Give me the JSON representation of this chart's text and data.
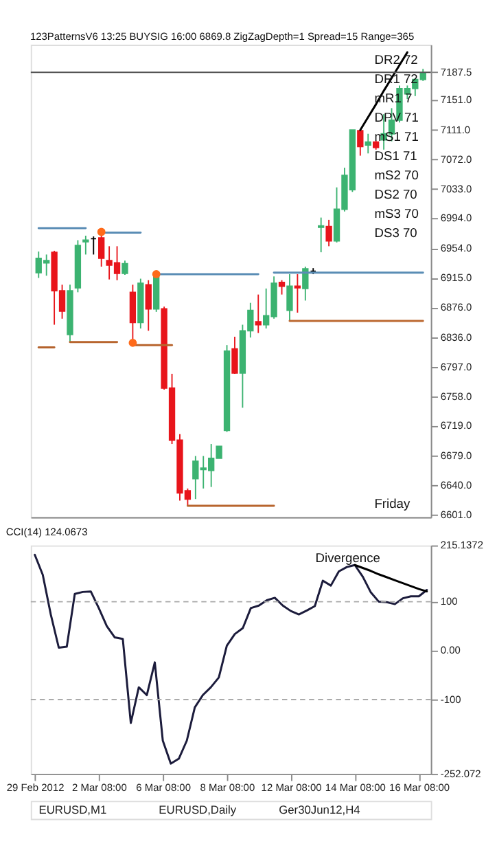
{
  "chart_data": [
    {
      "type": "candlestick",
      "title": "123PatternsV6  13:25  BUYSIG  16:00  6869.8  ZigZagDepth=1  Spread=15  Range=365",
      "tick_labels": "y",
      "grid": false,
      "categories": [
        null,
        null,
        null,
        null,
        null,
        null,
        null,
        null,
        null,
        null,
        null,
        null,
        null,
        null,
        null,
        null,
        null,
        null,
        null,
        null,
        null,
        null,
        null,
        null,
        null,
        null,
        null,
        null,
        null,
        null,
        null,
        null,
        null,
        null,
        null,
        null,
        null,
        null,
        null,
        null,
        null,
        null,
        null,
        null,
        null,
        null,
        null,
        null,
        null,
        null
      ],
      "ylim": [
        6598,
        7224
      ],
      "yticks": [
        {
          "value": 6601,
          "label": "6601.0"
        },
        {
          "value": 6640,
          "label": "6640.0"
        },
        {
          "value": 6679,
          "label": "6679.0"
        },
        {
          "value": 6719,
          "label": "6719.0"
        },
        {
          "value": 6758,
          "label": "6758.0"
        },
        {
          "value": 6797,
          "label": "6797.0"
        },
        {
          "value": 6836,
          "label": "6836.0"
        },
        {
          "value": 6876,
          "label": "6876.0"
        },
        {
          "value": 6915,
          "label": "6915.0"
        },
        {
          "value": 6954,
          "label": "6954.0"
        },
        {
          "value": 6994,
          "label": "6994.0"
        },
        {
          "value": 7033,
          "label": "7033.0"
        },
        {
          "value": 7072,
          "label": "7072.0"
        },
        {
          "value": 7111,
          "label": "7111.0"
        },
        {
          "value": 7151,
          "label": "7151.0"
        },
        {
          "value": 7187.5,
          "label": "7187.5"
        }
      ],
      "ohlc": [
        [
          6922,
          6950,
          6915,
          6941
        ],
        [
          6935,
          6946,
          6918,
          6938
        ],
        [
          6949,
          6951,
          6853,
          6898
        ],
        [
          6898,
          6906,
          6861,
          6871
        ],
        [
          6840,
          6906,
          6829,
          6898
        ],
        [
          6902,
          6965,
          6896,
          6958
        ],
        [
          6963,
          6971,
          6946,
          6965
        ],
        [
          6967,
          6970,
          6946,
          6967
        ],
        [
          6968,
          6973,
          6930,
          6941
        ],
        [
          6938,
          6957,
          6913,
          6932
        ],
        [
          6935,
          6957,
          6912,
          6921
        ],
        [
          6921,
          6938,
          6919,
          6934
        ],
        [
          6896,
          6906,
          6829,
          6856
        ],
        [
          6856,
          6914,
          6848,
          6908
        ],
        [
          6906,
          6912,
          6845,
          6874
        ],
        [
          6874,
          6922,
          6870,
          6920
        ],
        [
          6874,
          6877,
          6767,
          6769
        ],
        [
          6769,
          6788,
          6695,
          6700
        ],
        [
          6700,
          6708,
          6620,
          6630
        ],
        [
          6633,
          6636,
          6614,
          6622
        ],
        [
          6649,
          6679,
          6622,
          6672
        ],
        [
          6661,
          6679,
          6636,
          6663
        ],
        [
          6660,
          6695,
          6638,
          6676
        ],
        [
          6676,
          6692,
          6676,
          6692
        ],
        [
          6713,
          6826,
          6711,
          6818
        ],
        [
          6821,
          6837,
          6788,
          6789
        ],
        [
          6789,
          6853,
          6743,
          6845
        ],
        [
          6845,
          6882,
          6836,
          6872
        ],
        [
          6857,
          6893,
          6842,
          6853
        ],
        [
          6853,
          6901,
          6848,
          6865
        ],
        [
          6864,
          6917,
          6861,
          6908
        ],
        [
          6909,
          6912,
          6893,
          6904
        ],
        [
          6872,
          6920,
          6858,
          6904
        ],
        [
          6904,
          6920,
          6869,
          6902
        ],
        [
          6901,
          6930,
          6885,
          6927
        ],
        [
          6924,
          6928,
          6920,
          6924
        ],
        [
          6982,
          6995,
          6949,
          6984
        ],
        [
          6983,
          6992,
          6957,
          6964
        ],
        [
          6964,
          7035,
          6962,
          7006
        ],
        [
          7006,
          7061,
          7003,
          7051
        ],
        [
          7032,
          7111,
          7029,
          7111
        ],
        [
          7110,
          7111,
          7077,
          7089
        ],
        [
          7091,
          7106,
          7080,
          7095
        ],
        [
          7095,
          7097,
          7085,
          7088
        ],
        [
          7098,
          7132,
          7085,
          7106
        ],
        [
          7106,
          7140,
          7096,
          7124
        ],
        [
          7124,
          7170,
          7121,
          7166
        ],
        [
          7159,
          7170,
          7152,
          7166
        ],
        [
          7166,
          7180,
          7156,
          7178
        ],
        [
          7178,
          7192,
          7176,
          7186
        ]
      ],
      "colors": [
        "#3cb371",
        "#3cb371",
        "#e8151b",
        "#e8151b",
        "#3cb371",
        "#3cb371",
        "#3cb371",
        "#000000",
        "#e8151b",
        "#e8151b",
        "#e8151b",
        "#3cb371",
        "#e8151b",
        "#3cb371",
        "#e8151b",
        "#3cb371",
        "#e8151b",
        "#e8151b",
        "#e8151b",
        "#e8151b",
        "#3cb371",
        "#3cb371",
        "#3cb371",
        "#3cb371",
        "#3cb371",
        "#e8151b",
        "#3cb371",
        "#3cb371",
        "#e8151b",
        "#3cb371",
        "#3cb371",
        "#e8151b",
        "#3cb371",
        "#e8151b",
        "#3cb371",
        "#000000",
        "#3cb371",
        "#e8151b",
        "#3cb371",
        "#3cb371",
        "#3cb371",
        "#e8151b",
        "#3cb371",
        "#e8151b",
        "#3cb371",
        "#3cb371",
        "#3cb371",
        "#3cb371",
        "#3cb371",
        "#3cb371"
      ],
      "series": [
        {
          "type": "line",
          "color": "#5a8db5",
          "values": [
            6981,
            6981,
            6981,
            6981,
            6981,
            6981,
            6981,
            null,
            null,
            null,
            null,
            null,
            null,
            null,
            null,
            null,
            null,
            null,
            null,
            null,
            null,
            null,
            null,
            null,
            null,
            null,
            null,
            null,
            null,
            null,
            null,
            null,
            null,
            null,
            null,
            null,
            null,
            null,
            null,
            null,
            null,
            null,
            null,
            null,
            null,
            null,
            null,
            null,
            null,
            null
          ]
        },
        {
          "type": "line",
          "color": "#5a8db5",
          "values": [
            null,
            null,
            null,
            null,
            null,
            null,
            null,
            null,
            6975,
            6975,
            6975,
            6975,
            6975,
            6975,
            null,
            null,
            null,
            null,
            null,
            null,
            null,
            null,
            null,
            null,
            null,
            null,
            null,
            null,
            null,
            null,
            null,
            null,
            null,
            null,
            null,
            null,
            null,
            null,
            null,
            null,
            null,
            null,
            null,
            null,
            null,
            null,
            null,
            null,
            null,
            null
          ]
        },
        {
          "type": "line",
          "color": "#5a8db5",
          "values": [
            null,
            null,
            null,
            null,
            null,
            null,
            null,
            null,
            null,
            null,
            null,
            null,
            null,
            null,
            null,
            6920,
            6920,
            6920,
            6920,
            6920,
            6920,
            6920,
            6920,
            6920,
            6920,
            6920,
            6920,
            6920,
            6920,
            null,
            null,
            null,
            null,
            null,
            null,
            null,
            null,
            null,
            null,
            null,
            null,
            null,
            null,
            null,
            null,
            null,
            null,
            null,
            null,
            null
          ]
        },
        {
          "type": "line",
          "color": "#5a8db5",
          "values": [
            null,
            null,
            null,
            null,
            null,
            null,
            null,
            null,
            null,
            null,
            null,
            null,
            null,
            null,
            null,
            null,
            null,
            null,
            null,
            null,
            null,
            null,
            null,
            null,
            null,
            null,
            null,
            null,
            null,
            null,
            6922,
            6922,
            6922,
            6922,
            6922,
            6922,
            6922,
            6922,
            6922,
            6922,
            6922,
            6922,
            6922,
            6922,
            6922,
            6922,
            6922,
            6922,
            6922,
            6922
          ]
        },
        {
          "type": "line",
          "color": "#b4622c",
          "values": [
            6823,
            6823,
            6823,
            null,
            null,
            null,
            null,
            null,
            null,
            null,
            null,
            null,
            null,
            null,
            null,
            null,
            null,
            null,
            null,
            null,
            null,
            null,
            null,
            null,
            null,
            null,
            null,
            null,
            null,
            null,
            null,
            null,
            null,
            null,
            null,
            null,
            null,
            null,
            null,
            null,
            null,
            null,
            null,
            null,
            null,
            null,
            null,
            null,
            null,
            null
          ]
        },
        {
          "type": "line",
          "color": "#b8652e",
          "values": [
            null,
            null,
            null,
            null,
            6830,
            6830,
            6830,
            6830,
            6830,
            6830,
            6830,
            null,
            null,
            null,
            null,
            null,
            null,
            null,
            null,
            null,
            null,
            null,
            null,
            null,
            null,
            null,
            null,
            null,
            null,
            null,
            null,
            null,
            null,
            null,
            null,
            null,
            null,
            null,
            null,
            null,
            null,
            null,
            null,
            null,
            null,
            null,
            null,
            null,
            null,
            null
          ]
        },
        {
          "type": "line",
          "color": "#b8652e",
          "values": [
            null,
            null,
            null,
            null,
            null,
            null,
            null,
            null,
            null,
            null,
            null,
            null,
            6826,
            6826,
            6826,
            6826,
            6826,
            6826,
            null,
            null,
            null,
            null,
            null,
            null,
            null,
            null,
            null,
            null,
            null,
            null,
            null,
            null,
            null,
            null,
            null,
            null,
            null,
            null,
            null,
            null,
            null,
            null,
            null,
            null,
            null,
            null,
            null,
            null,
            null,
            null
          ]
        },
        {
          "type": "line",
          "color": "#b8652e",
          "values": [
            null,
            null,
            null,
            null,
            null,
            null,
            null,
            null,
            null,
            null,
            null,
            null,
            null,
            null,
            null,
            null,
            null,
            null,
            null,
            6613,
            6613,
            6613,
            6613,
            6613,
            6613,
            6613,
            6613,
            6613,
            6613,
            6613,
            6613,
            null,
            null,
            null,
            null,
            null,
            null,
            null,
            null,
            null,
            null,
            null,
            null,
            null,
            null,
            null,
            null,
            null,
            null,
            null
          ]
        },
        {
          "type": "line",
          "color": "#bc6830",
          "values": [
            null,
            null,
            null,
            null,
            null,
            null,
            null,
            null,
            null,
            null,
            null,
            null,
            null,
            null,
            null,
            null,
            null,
            null,
            null,
            null,
            null,
            null,
            null,
            null,
            null,
            null,
            null,
            null,
            null,
            null,
            null,
            null,
            6858,
            6858,
            6858,
            6858,
            6858,
            6858,
            6858,
            6858,
            6858,
            6858,
            6858,
            6858,
            6858,
            6858,
            6858,
            6858,
            6858,
            6858
          ]
        },
        {
          "type": "line",
          "color": "#000000",
          "values": [
            null,
            null,
            null,
            null,
            null,
            null,
            null,
            null,
            null,
            null,
            null,
            null,
            null,
            null,
            null,
            null,
            null,
            null,
            null,
            null,
            null,
            null,
            null,
            null,
            null,
            null,
            null,
            null,
            null,
            null,
            null,
            null,
            null,
            null,
            null,
            null,
            null,
            null,
            null,
            null,
            null,
            7111,
            7128,
            7145,
            7163,
            7180,
            7197,
            7214,
            null,
            null
          ]
        },
        {
          "type": "scatter",
          "color": "#ff6a1a",
          "marker": "circle",
          "values": [
            null,
            null,
            null,
            null,
            null,
            null,
            null,
            null,
            6976,
            null,
            null,
            null,
            6829,
            null,
            null,
            6920,
            null,
            null,
            null,
            null,
            null,
            null,
            null,
            null,
            null,
            null,
            null,
            null,
            null,
            null,
            null,
            null,
            null,
            null,
            null,
            null,
            null,
            null,
            null,
            null,
            null,
            null,
            null,
            null,
            null,
            null,
            null,
            null,
            null,
            null
          ]
        }
      ],
      "ref_lines": [
        {
          "axis": "y",
          "value": 7187.5,
          "color": "#555555"
        }
      ],
      "annotations": [
        "DR2  72",
        "DR1  72",
        "mR1  7",
        "DPV  71",
        "mS1  71",
        "DS1  71",
        "mS2  70",
        "DS2  70",
        "mS3  70",
        "DS3  70",
        "Friday"
      ]
    },
    {
      "type": "line",
      "title": "CCI(14) 124.0673",
      "grid": false,
      "categories": [
        "29 Feb 2012",
        null,
        null,
        null,
        null,
        null,
        null,
        null,
        "2 Mar 08:00",
        null,
        null,
        null,
        null,
        null,
        null,
        null,
        "6 Mar 08:00",
        null,
        null,
        null,
        null,
        null,
        null,
        null,
        "8 Mar 08:00",
        null,
        null,
        null,
        null,
        null,
        null,
        null,
        "12 Mar 08:00",
        null,
        null,
        null,
        null,
        null,
        null,
        null,
        "14 Mar 08:00",
        null,
        null,
        null,
        null,
        null,
        null,
        null,
        "16 Mar 08:00",
        null
      ],
      "ylim": [
        -252.072,
        215.1372
      ],
      "yticks": [
        {
          "value": 215.1372,
          "label": "215.1372"
        },
        100,
        {
          "value": 0,
          "label": "0.00"
        },
        -100,
        {
          "value": -252.072,
          "label": "-252.072"
        }
      ],
      "series": [
        {
          "color": "#1c1c3c",
          "values": [
            196,
            155,
            74,
            6,
            8,
            116,
            120,
            121,
            87,
            50,
            27,
            24,
            -148,
            -75,
            -91,
            -24,
            -184,
            -231,
            -221,
            -184,
            -116,
            -91,
            -75,
            -55,
            10,
            34,
            46,
            87,
            92,
            103,
            108,
            92,
            81,
            74,
            82,
            91,
            143,
            133,
            162,
            171,
            175,
            151,
            119,
            100,
            99,
            95,
            107,
            111,
            111,
            124
          ]
        },
        {
          "color": "#000000",
          "values": [
            null,
            null,
            null,
            null,
            null,
            null,
            null,
            null,
            null,
            null,
            null,
            null,
            null,
            null,
            null,
            null,
            null,
            null,
            null,
            null,
            null,
            null,
            null,
            null,
            null,
            null,
            null,
            null,
            null,
            null,
            null,
            null,
            null,
            null,
            null,
            null,
            null,
            null,
            null,
            null,
            175,
            169,
            163,
            156,
            150,
            144,
            138,
            132,
            126,
            121
          ]
        }
      ],
      "ref_lines": [
        {
          "axis": "y",
          "value": 100,
          "line_style": "dashed",
          "color": "#aaaaaa"
        },
        {
          "axis": "y",
          "value": -100,
          "line_style": "dashed",
          "color": "#aaaaaa"
        }
      ],
      "annotations": [
        "Divergence"
      ]
    },
    {
      "type": "other",
      "annotations": [
        "EURUSD,M1",
        "EURUSD,Daily",
        "Ger30Jun12,H4"
      ]
    }
  ]
}
